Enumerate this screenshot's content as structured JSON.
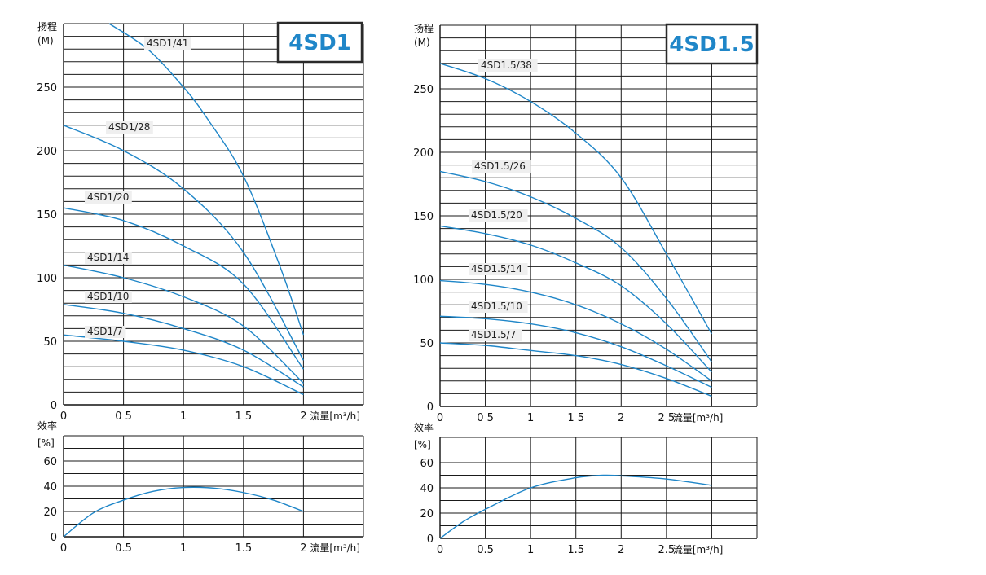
{
  "panels": [
    {
      "id": "4sd1",
      "badge": "4SD1",
      "accent_color": "#1f86c8",
      "head_chart": {
        "type": "line",
        "y_title_line1": "扬程",
        "y_title_line2": "(M)",
        "x_title": "流量[m³/h]",
        "xlim": [
          0,
          2.5
        ],
        "ylim": [
          0,
          300
        ],
        "x_ticks": [
          0,
          0.5,
          1,
          1.5,
          2
        ],
        "x_tick_labels": [
          "0",
          "0 5",
          "1",
          "1 5",
          "2"
        ],
        "y_ticks": [
          0,
          50,
          100,
          150,
          200,
          250
        ],
        "y_tick_labels": [
          "0",
          "50",
          "100",
          "150",
          "200",
          "250"
        ],
        "grid": true,
        "series": [
          {
            "name": "4SD1/41",
            "x": [
              0.38,
              0.7,
              1.0,
              1.2,
              1.5,
              1.8,
              2.0
            ],
            "y": [
              300,
              280,
              250,
              225,
              180,
              110,
              55
            ]
          },
          {
            "name": "4SD1/28",
            "x": [
              0,
              0.5,
              1.0,
              1.5,
              2.0
            ],
            "y": [
              220,
              200,
              170,
              120,
              35
            ]
          },
          {
            "name": "4SD1/20",
            "x": [
              0,
              0.5,
              1.0,
              1.5,
              2.0
            ],
            "y": [
              155,
              145,
              125,
              95,
              28
            ]
          },
          {
            "name": "4SD1/14",
            "x": [
              0,
              0.5,
              1.0,
              1.5,
              2.0
            ],
            "y": [
              110,
              100,
              85,
              62,
              17
            ]
          },
          {
            "name": "4SD1/10",
            "x": [
              0,
              0.5,
              1.0,
              1.5,
              2.0
            ],
            "y": [
              79,
              72,
              60,
              43,
              14
            ]
          },
          {
            "name": "4SD1/7",
            "x": [
              0,
              0.5,
              1.0,
              1.5,
              2.0
            ],
            "y": [
              55,
              50,
              43,
              30,
              8
            ]
          }
        ]
      },
      "eff_chart": {
        "type": "line",
        "y_title_line1": "效率",
        "y_title_line2": "[%]",
        "x_title": "流量[m³/h]",
        "xlim": [
          0,
          2.5
        ],
        "ylim": [
          0,
          80
        ],
        "x_ticks": [
          0,
          0.5,
          1,
          1.5,
          2
        ],
        "x_tick_labels": [
          "0",
          "0.5",
          "1",
          "1.5",
          "2"
        ],
        "y_ticks": [
          0,
          20,
          40,
          60
        ],
        "y_tick_labels": [
          "0",
          "20",
          "40",
          "60"
        ],
        "grid": true,
        "series": [
          {
            "x": [
              0,
              0.25,
              0.5,
              0.75,
              1.0,
              1.25,
              1.5,
              1.75,
              2.0
            ],
            "y": [
              0,
              19,
              29,
              36,
              39,
              38.5,
              35,
              29,
              20
            ]
          }
        ]
      }
    },
    {
      "id": "4sd15",
      "badge": "4SD1.5",
      "accent_color": "#1f86c8",
      "head_chart": {
        "type": "line",
        "y_title_line1": "扬程",
        "y_title_line2": "(M)",
        "x_title": "流量[m³/h]",
        "xlim": [
          0,
          3.5
        ],
        "ylim": [
          0,
          300
        ],
        "x_ticks": [
          0,
          0.5,
          1,
          1.5,
          2,
          2.5
        ],
        "x_tick_labels": [
          "0",
          "0 5",
          "1",
          "1 5",
          "2",
          "2 5"
        ],
        "y_ticks": [
          0,
          50,
          100,
          150,
          200,
          250
        ],
        "y_tick_labels": [
          "0",
          "50",
          "100",
          "150",
          "200",
          "250"
        ],
        "grid": true,
        "series": [
          {
            "name": "4SD1.5/38",
            "x": [
              0,
              0.5,
              1.0,
              1.5,
              2.0,
              2.5,
              3.0
            ],
            "y": [
              270,
              258,
              240,
              215,
              180,
              120,
              57
            ]
          },
          {
            "name": "4SD1.5/26",
            "x": [
              0,
              0.5,
              1.0,
              1.5,
              2.0,
              2.5,
              3.0
            ],
            "y": [
              185,
              177,
              165,
              148,
              125,
              85,
              35
            ]
          },
          {
            "name": "4SD1.5/20",
            "x": [
              0,
              0.5,
              1.0,
              1.5,
              2.0,
              2.5,
              3.0
            ],
            "y": [
              142,
              136,
              127,
              113,
              95,
              65,
              27
            ]
          },
          {
            "name": "4SD1.5/14",
            "x": [
              0,
              0.5,
              1.0,
              1.5,
              2.0,
              2.5,
              3.0
            ],
            "y": [
              99,
              96,
              90,
              80,
              65,
              45,
              20
            ]
          },
          {
            "name": "4SD1.5/10",
            "x": [
              0,
              0.5,
              1.0,
              1.5,
              2.0,
              2.5,
              3.0
            ],
            "y": [
              71,
              69,
              65,
              58,
              47,
              32,
              15
            ]
          },
          {
            "name": "4SD1.5/7",
            "x": [
              0,
              0.5,
              1.0,
              1.5,
              2.0,
              2.5,
              3.0
            ],
            "y": [
              50,
              48,
              44,
              40,
              33,
              22,
              8
            ]
          }
        ]
      },
      "eff_chart": {
        "type": "line",
        "y_title_line1": "效率",
        "y_title_line2": "[%]",
        "x_title": "流量[m³/h]",
        "xlim": [
          0,
          3.5
        ],
        "ylim": [
          0,
          80
        ],
        "x_ticks": [
          0,
          0.5,
          1,
          1.5,
          2,
          2.5
        ],
        "x_tick_labels": [
          "0",
          "0.5",
          "1",
          "1.5",
          "2",
          "2.5"
        ],
        "y_ticks": [
          0,
          20,
          40,
          60
        ],
        "y_tick_labels": [
          "0",
          "20",
          "40",
          "60"
        ],
        "grid": true,
        "series": [
          {
            "x": [
              0,
              0.25,
              0.5,
              1.0,
              1.5,
              1.8,
              2.0,
              2.5,
              3.0
            ],
            "y": [
              0,
              13,
              23,
              40,
              48,
              50,
              49.5,
              47,
              42
            ]
          }
        ]
      }
    }
  ]
}
